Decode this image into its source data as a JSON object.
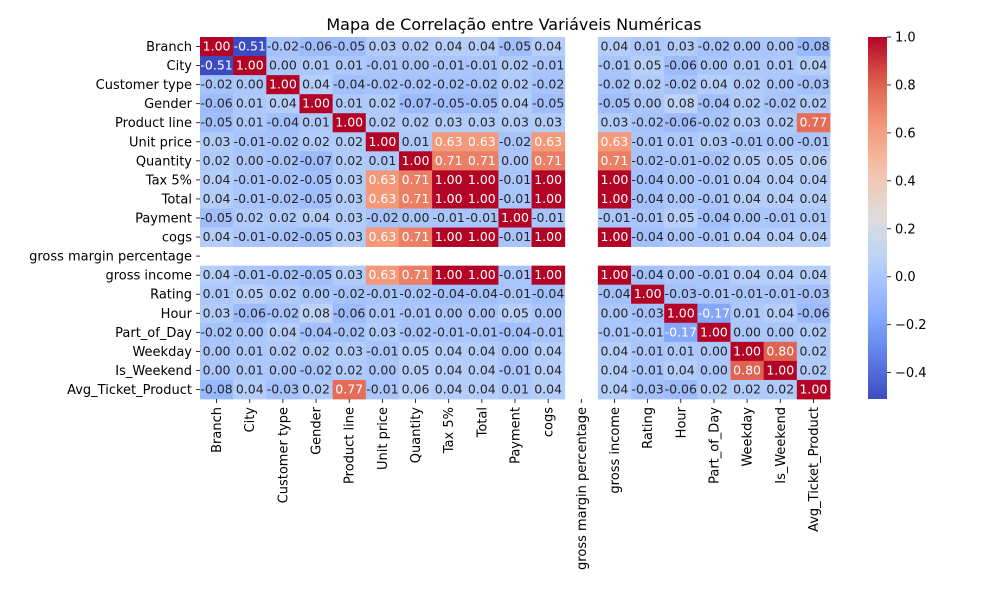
{
  "chart_data": {
    "type": "heatmap",
    "title": "Mapa de Correlação entre Variáveis Numéricas",
    "xlabel": "",
    "ylabel": "",
    "labels": [
      "Branch",
      "City",
      "Customer type",
      "Gender",
      "Product line",
      "Unit price",
      "Quantity",
      "Tax 5%",
      "Total",
      "Payment",
      "cogs",
      "gross margin percentage",
      "gross income",
      "Rating",
      "Hour",
      "Part_of_Day",
      "Weekday",
      "Is_Weekend",
      "Avg_Ticket_Product"
    ],
    "matrix": [
      [
        1.0,
        -0.51,
        -0.02,
        -0.06,
        -0.05,
        0.03,
        0.02,
        0.04,
        0.04,
        -0.05,
        0.04,
        null,
        0.04,
        0.01,
        0.03,
        -0.02,
        -0.0,
        0.0,
        -0.08
      ],
      [
        -0.51,
        1.0,
        0.0,
        0.01,
        0.01,
        -0.01,
        -0.0,
        -0.01,
        -0.01,
        0.02,
        -0.01,
        null,
        -0.01,
        0.05,
        -0.06,
        0.0,
        0.01,
        0.01,
        0.04
      ],
      [
        -0.02,
        0.0,
        1.0,
        0.04,
        -0.04,
        -0.02,
        -0.02,
        -0.02,
        -0.02,
        0.02,
        -0.02,
        null,
        -0.02,
        0.02,
        -0.02,
        0.04,
        0.02,
        0.0,
        -0.03
      ],
      [
        -0.06,
        0.01,
        0.04,
        1.0,
        0.01,
        0.02,
        -0.07,
        -0.05,
        -0.05,
        0.04,
        -0.05,
        null,
        -0.05,
        0.0,
        0.08,
        -0.04,
        0.02,
        -0.02,
        0.02
      ],
      [
        -0.05,
        0.01,
        -0.04,
        0.01,
        1.0,
        0.02,
        0.02,
        0.03,
        0.03,
        0.03,
        0.03,
        null,
        0.03,
        -0.02,
        -0.06,
        -0.02,
        0.03,
        0.02,
        0.77
      ],
      [
        0.03,
        -0.01,
        -0.02,
        0.02,
        0.02,
        1.0,
        0.01,
        0.63,
        0.63,
        -0.02,
        0.63,
        null,
        0.63,
        -0.01,
        0.01,
        0.03,
        -0.01,
        0.0,
        -0.01
      ],
      [
        0.02,
        -0.0,
        -0.02,
        -0.07,
        0.02,
        0.01,
        1.0,
        0.71,
        0.71,
        -0.0,
        0.71,
        null,
        0.71,
        -0.02,
        -0.01,
        -0.02,
        0.05,
        0.05,
        0.06
      ],
      [
        0.04,
        -0.01,
        -0.02,
        -0.05,
        0.03,
        0.63,
        0.71,
        1.0,
        1.0,
        -0.01,
        1.0,
        null,
        1.0,
        -0.04,
        -0.0,
        -0.01,
        0.04,
        0.04,
        0.04
      ],
      [
        0.04,
        -0.01,
        -0.02,
        -0.05,
        0.03,
        0.63,
        0.71,
        1.0,
        1.0,
        -0.01,
        1.0,
        null,
        1.0,
        -0.04,
        -0.0,
        -0.01,
        0.04,
        0.04,
        0.04
      ],
      [
        -0.05,
        0.02,
        0.02,
        0.04,
        0.03,
        -0.02,
        -0.0,
        -0.01,
        -0.01,
        1.0,
        -0.01,
        null,
        -0.01,
        -0.01,
        0.05,
        -0.04,
        -0.0,
        -0.01,
        0.01
      ],
      [
        0.04,
        -0.01,
        -0.02,
        -0.05,
        0.03,
        0.63,
        0.71,
        1.0,
        1.0,
        -0.01,
        1.0,
        null,
        1.0,
        -0.04,
        -0.0,
        -0.01,
        0.04,
        0.04,
        0.04
      ],
      [
        null,
        null,
        null,
        null,
        null,
        null,
        null,
        null,
        null,
        null,
        null,
        null,
        null,
        null,
        null,
        null,
        null,
        null,
        null
      ],
      [
        0.04,
        -0.01,
        -0.02,
        -0.05,
        0.03,
        0.63,
        0.71,
        1.0,
        1.0,
        -0.01,
        1.0,
        null,
        1.0,
        -0.04,
        -0.0,
        -0.01,
        0.04,
        0.04,
        0.04
      ],
      [
        0.01,
        0.05,
        0.02,
        0.0,
        -0.02,
        -0.01,
        -0.02,
        -0.04,
        -0.04,
        -0.01,
        -0.04,
        null,
        -0.04,
        1.0,
        -0.03,
        -0.01,
        -0.01,
        -0.01,
        -0.03
      ],
      [
        0.03,
        -0.06,
        -0.02,
        0.08,
        -0.06,
        0.01,
        -0.01,
        -0.0,
        -0.0,
        0.05,
        -0.0,
        null,
        -0.0,
        -0.03,
        1.0,
        -0.17,
        0.01,
        0.04,
        -0.06
      ],
      [
        -0.02,
        0.0,
        0.04,
        -0.04,
        -0.02,
        0.03,
        -0.02,
        -0.01,
        -0.01,
        -0.04,
        -0.01,
        null,
        -0.01,
        -0.01,
        -0.17,
        1.0,
        0.0,
        0.0,
        0.02
      ],
      [
        -0.0,
        0.01,
        0.02,
        0.02,
        0.03,
        -0.01,
        0.05,
        0.04,
        0.04,
        -0.0,
        0.04,
        null,
        0.04,
        -0.01,
        0.01,
        0.0,
        1.0,
        0.8,
        0.02
      ],
      [
        0.0,
        0.01,
        0.0,
        -0.02,
        0.02,
        0.0,
        0.05,
        0.04,
        0.04,
        -0.01,
        0.04,
        null,
        0.04,
        -0.01,
        0.04,
        0.0,
        0.8,
        1.0,
        0.02
      ],
      [
        -0.08,
        0.04,
        -0.03,
        0.02,
        0.77,
        -0.01,
        0.06,
        0.04,
        0.04,
        0.01,
        0.04,
        null,
        0.04,
        -0.03,
        -0.06,
        0.02,
        0.02,
        0.02,
        1.0
      ]
    ],
    "colormap": "coolwarm",
    "vmin": -0.51,
    "vmax": 1.0,
    "colorbar_ticks": [
      "−0.4",
      "−0.2",
      "0.0",
      "0.2",
      "0.4",
      "0.6",
      "0.8",
      "1.0"
    ],
    "colors": {
      "low": "#3b4cc0",
      "mid": "#dddddd",
      "high": "#b40426"
    }
  }
}
